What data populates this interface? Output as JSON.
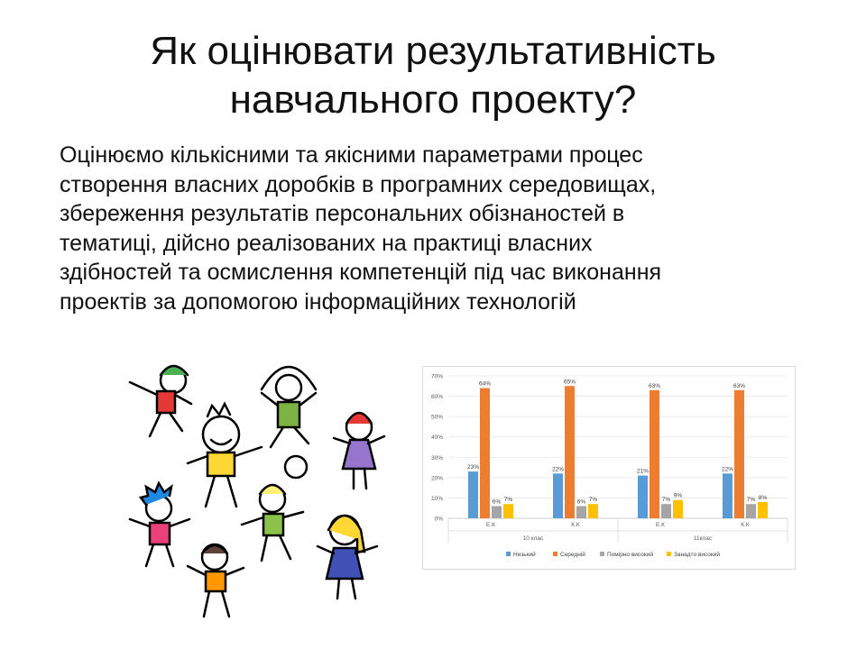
{
  "slide": {
    "title_lines": [
      "Як оцінювати результативність",
      "навчального проекту?"
    ],
    "body_lines": [
      "Оцінюємо кількісними та якісними параметрами процес",
      "створення власних доробків в програмних середовищах,",
      "збереження результатів  персональних обізнаностей в",
      "тематиці, дійсно реалізованих на практиці власних",
      "здібностей та осмислення компетенцій під час виконання",
      "проектів за допомогою інформаційних технологій"
    ]
  },
  "chart_data": {
    "type": "bar",
    "groups": [
      {
        "label": "10 клас",
        "categories": [
          "Е.К",
          "К.К"
        ]
      },
      {
        "label": "11клас",
        "categories": [
          "Е.К",
          "К.К"
        ]
      }
    ],
    "categories": [
      "Е.К",
      "К.К",
      "Е.К",
      "К.К"
    ],
    "series": [
      {
        "name": "Низький",
        "color": "#5b9bd5",
        "values": [
          23,
          22,
          21,
          22
        ]
      },
      {
        "name": "Середній",
        "color": "#ed7d31",
        "values": [
          64,
          65,
          63,
          63
        ]
      },
      {
        "name": "Помірно високий",
        "color": "#a5a5a5",
        "values": [
          6,
          6,
          7,
          7
        ]
      },
      {
        "name": "Занадто високий",
        "color": "#ffc000",
        "values": [
          7,
          7,
          9,
          8
        ]
      }
    ],
    "data_labels": [
      [
        "23%",
        "22%",
        "21%",
        "22%"
      ],
      [
        "64%",
        "65%",
        "63%",
        "63%"
      ],
      [
        "6%",
        "6%",
        "7%",
        "7%"
      ],
      [
        "7%",
        "7%",
        "9%",
        "8%"
      ]
    ],
    "yticks": [
      "0%",
      "10%",
      "20%",
      "30%",
      "40%",
      "50%",
      "60%",
      "70%"
    ],
    "ylim": [
      0,
      70
    ],
    "grid": true,
    "legend": "bottom",
    "title": "",
    "xlabel": "",
    "ylabel": ""
  }
}
